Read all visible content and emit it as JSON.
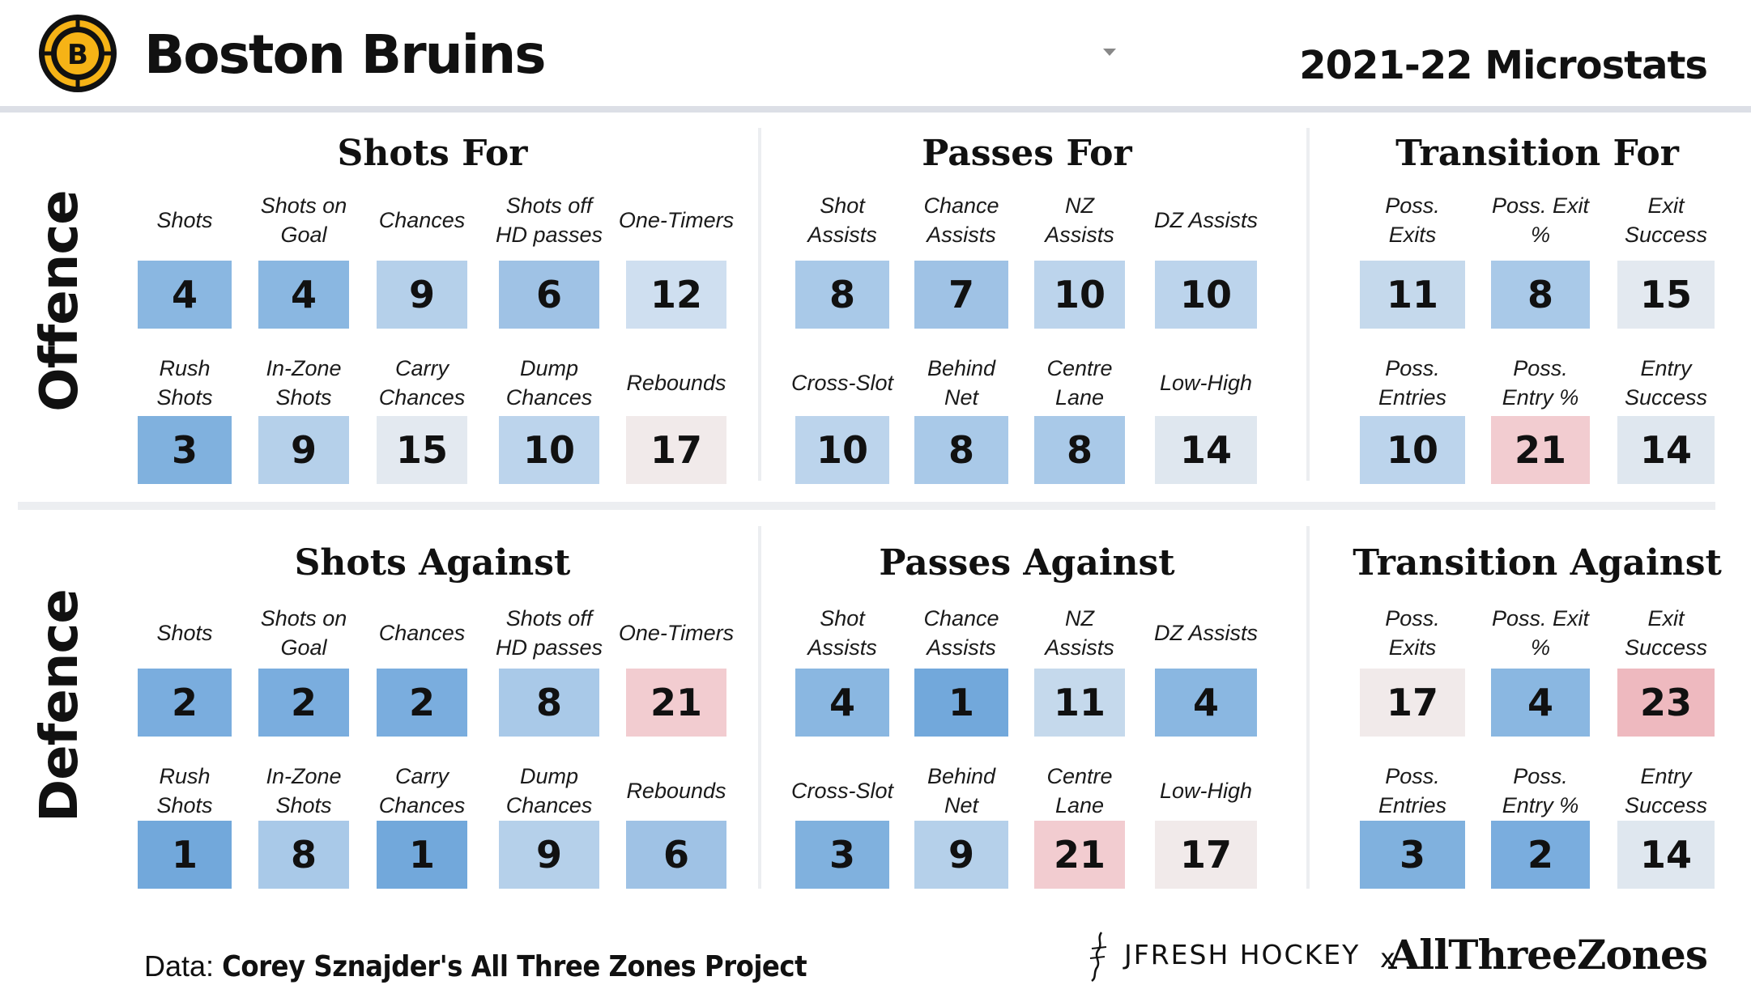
{
  "header": {
    "team_name": "Boston Bruins",
    "season_title": "2021-22 Microstats",
    "logo_letter": "B"
  },
  "side_labels": {
    "offence": "Offence",
    "defence": "Defence"
  },
  "colors": {
    "blue_strong": "#72a8db",
    "blue_medium": "#8ab7e1",
    "blue_light": "#a9c9e8",
    "blue_pale": "#c5d9ec",
    "neutral": "#e4e9ef",
    "warm_neutral": "#efe8e8",
    "pink": "#f2ccd0",
    "pink_strong": "#eeb9bf"
  },
  "panels": [
    {
      "id": "shots-for",
      "title": "Shots For",
      "rows": [
        [
          {
            "label": "Shots",
            "value": "4",
            "color": "#8ab7e1"
          },
          {
            "label": "Shots on\nGoal",
            "value": "4",
            "color": "#8ab7e1"
          },
          {
            "label": "Chances",
            "value": "9",
            "color": "#b5d0ea"
          },
          {
            "label": "Shots off\nHD passes",
            "value": "6",
            "color": "#9fc2e5"
          },
          {
            "label": "One-Timers",
            "value": "12",
            "color": "#cfdff0"
          }
        ],
        [
          {
            "label": "Rush\nShots",
            "value": "3",
            "color": "#80b1de"
          },
          {
            "label": "In-Zone\nShots",
            "value": "9",
            "color": "#b5d0ea"
          },
          {
            "label": "Carry\nChances",
            "value": "15",
            "color": "#e3e9f0"
          },
          {
            "label": "Dump\nChances",
            "value": "10",
            "color": "#bcd4ec"
          },
          {
            "label": "Rebounds",
            "value": "17",
            "color": "#f1eaea"
          }
        ]
      ]
    },
    {
      "id": "passes-for",
      "title": "Passes For",
      "rows": [
        [
          {
            "label": "Shot\nAssists",
            "value": "8",
            "color": "#a9c9e8"
          },
          {
            "label": "Chance\nAssists",
            "value": "7",
            "color": "#9fc2e5"
          },
          {
            "label": "NZ\nAssists",
            "value": "10",
            "color": "#bcd4ec"
          },
          {
            "label": "DZ Assists",
            "value": "10",
            "color": "#bcd4ec"
          }
        ],
        [
          {
            "label": "Cross-Slot",
            "value": "10",
            "color": "#bcd4ec"
          },
          {
            "label": "Behind\nNet",
            "value": "8",
            "color": "#a9c9e8"
          },
          {
            "label": "Centre\nLane",
            "value": "8",
            "color": "#a9c9e8"
          },
          {
            "label": "Low-High",
            "value": "14",
            "color": "#dfe7ef"
          }
        ]
      ]
    },
    {
      "id": "transition-for",
      "title": "Transition For",
      "rows": [
        [
          {
            "label": "Poss.\nExits",
            "value": "11",
            "color": "#c5d9ec"
          },
          {
            "label": "Poss. Exit\n%",
            "value": "8",
            "color": "#a9c9e8"
          },
          {
            "label": "Exit\nSuccess",
            "value": "15",
            "color": "#e3e9f0"
          }
        ],
        [
          {
            "label": "Poss.\nEntries",
            "value": "10",
            "color": "#bcd4ec"
          },
          {
            "label": "Poss.\nEntry %",
            "value": "21",
            "color": "#f2ccd0"
          },
          {
            "label": "Entry\nSuccess",
            "value": "14",
            "color": "#dfe7ef"
          }
        ]
      ]
    },
    {
      "id": "shots-against",
      "title": "Shots Against",
      "rows": [
        [
          {
            "label": "Shots",
            "value": "2",
            "color": "#7aadde"
          },
          {
            "label": "Shots on\nGoal",
            "value": "2",
            "color": "#7aadde"
          },
          {
            "label": "Chances",
            "value": "2",
            "color": "#7aadde"
          },
          {
            "label": "Shots off\nHD passes",
            "value": "8",
            "color": "#a9c9e8"
          },
          {
            "label": "One-Timers",
            "value": "21",
            "color": "#f2ccd0"
          }
        ],
        [
          {
            "label": "Rush\nShots",
            "value": "1",
            "color": "#72a8db"
          },
          {
            "label": "In-Zone\nShots",
            "value": "8",
            "color": "#a9c9e8"
          },
          {
            "label": "Carry\nChances",
            "value": "1",
            "color": "#72a8db"
          },
          {
            "label": "Dump\nChances",
            "value": "9",
            "color": "#b5d0ea"
          },
          {
            "label": "Rebounds",
            "value": "6",
            "color": "#9fc2e5"
          }
        ]
      ]
    },
    {
      "id": "passes-against",
      "title": "Passes Against",
      "rows": [
        [
          {
            "label": "Shot\nAssists",
            "value": "4",
            "color": "#8ab7e1"
          },
          {
            "label": "Chance\nAssists",
            "value": "1",
            "color": "#72a8db"
          },
          {
            "label": "NZ\nAssists",
            "value": "11",
            "color": "#c5d9ec"
          },
          {
            "label": "DZ Assists",
            "value": "4",
            "color": "#8ab7e1"
          }
        ],
        [
          {
            "label": "Cross-Slot",
            "value": "3",
            "color": "#80b1de"
          },
          {
            "label": "Behind\nNet",
            "value": "9",
            "color": "#b5d0ea"
          },
          {
            "label": "Centre\nLane",
            "value": "21",
            "color": "#f2ccd0"
          },
          {
            "label": "Low-High",
            "value": "17",
            "color": "#f1eaea"
          }
        ]
      ]
    },
    {
      "id": "transition-against",
      "title": "Transition Against",
      "rows": [
        [
          {
            "label": "Poss.\nExits",
            "value": "17",
            "color": "#f1eaea"
          },
          {
            "label": "Poss. Exit\n%",
            "value": "4",
            "color": "#8ab7e1"
          },
          {
            "label": "Exit\nSuccess",
            "value": "23",
            "color": "#eeb9bf"
          }
        ],
        [
          {
            "label": "Poss.\nEntries",
            "value": "3",
            "color": "#80b1de"
          },
          {
            "label": "Poss.\nEntry %",
            "value": "2",
            "color": "#7aadde"
          },
          {
            "label": "Entry\nSuccess",
            "value": "14",
            "color": "#dfe7ef"
          }
        ]
      ]
    }
  ],
  "footer": {
    "data_label": "Data:",
    "data_source": "Corey Sznajder's All Three Zones Project",
    "brand_left": "JFRESH HOCKEY",
    "brand_separator": "x",
    "brand_right": "AllThreeZones"
  }
}
